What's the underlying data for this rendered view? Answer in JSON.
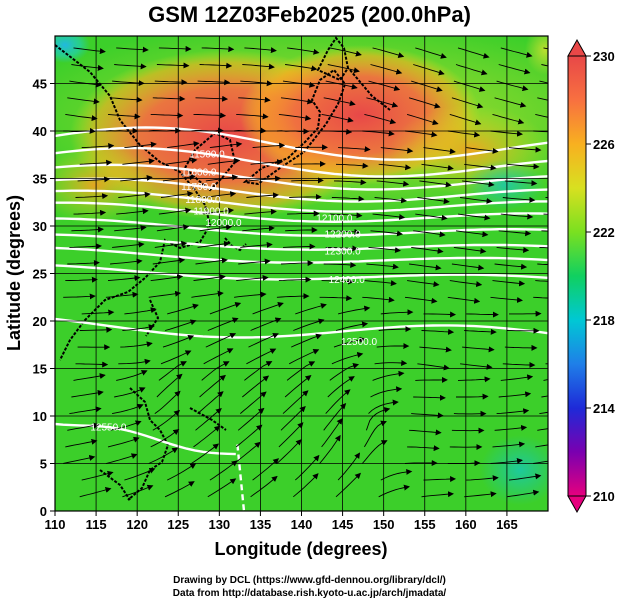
{
  "title": "GSM 12Z03Feb2025 (200.0hPa)",
  "xaxis": {
    "label": "Longitude (degrees)",
    "range": [
      110,
      170
    ],
    "ticks": [
      "110",
      "115",
      "120",
      "125",
      "130",
      "135",
      "140",
      "145",
      "150",
      "155",
      "160",
      "165"
    ],
    "tick_values": [
      110,
      115,
      120,
      125,
      130,
      135,
      140,
      145,
      150,
      155,
      160,
      165
    ]
  },
  "yaxis": {
    "label": "Latitude  (degrees)",
    "range": [
      0,
      50
    ],
    "ticks": [
      "0",
      "5",
      "10",
      "15",
      "20",
      "25",
      "30",
      "35",
      "40",
      "45"
    ],
    "tick_values": [
      0,
      5,
      10,
      15,
      20,
      25,
      30,
      35,
      40,
      45
    ]
  },
  "colorbar": {
    "range": [
      210,
      230
    ],
    "labels": [
      "230",
      "226",
      "222",
      "218",
      "214",
      "210"
    ],
    "label_values": [
      230,
      226,
      222,
      218,
      214,
      210
    ],
    "colors": [
      "#e6007e",
      "#7a00b0",
      "#1e2ad8",
      "#1f7fe8",
      "#00c8d4",
      "#10d060",
      "#7ae020",
      "#d8e020",
      "#f8b020",
      "#f87040",
      "#e84848"
    ]
  },
  "map_layers": {
    "shading": "temperature",
    "contours": "geopotential-height",
    "vectors": "wind-streamlines",
    "background": "#3ccf2a"
  },
  "contour_labels": [
    {
      "text": "11500.0",
      "lon": 128.5,
      "lat": 37.2
    },
    {
      "text": "11600.0",
      "lon": 127.5,
      "lat": 35.3
    },
    {
      "text": "11700.0",
      "lon": 127.5,
      "lat": 33.8
    },
    {
      "text": "11800.0",
      "lon": 128.0,
      "lat": 32.4
    },
    {
      "text": "11900.0",
      "lon": 129.0,
      "lat": 31.2
    },
    {
      "text": "12000.0",
      "lon": 130.5,
      "lat": 30.0
    },
    {
      "text": "12100.0",
      "lon": 144.0,
      "lat": 30.5
    },
    {
      "text": "12200.0",
      "lon": 145.0,
      "lat": 28.8
    },
    {
      "text": "12300.0",
      "lon": 145.0,
      "lat": 27.0
    },
    {
      "text": "12400.0",
      "lon": 145.5,
      "lat": 24.0
    },
    {
      "text": "12500.0",
      "lon": 147.0,
      "lat": 17.5
    },
    {
      "text": "12550.0",
      "lon": 116.5,
      "lat": 8.5
    }
  ],
  "credits": {
    "line1": "Drawing by DCL (https://www.gfd-dennou.org/library/dcl/)",
    "line2": "Data from http://database.rish.kyoto-u.ac.jp/arch/jmadata/"
  }
}
